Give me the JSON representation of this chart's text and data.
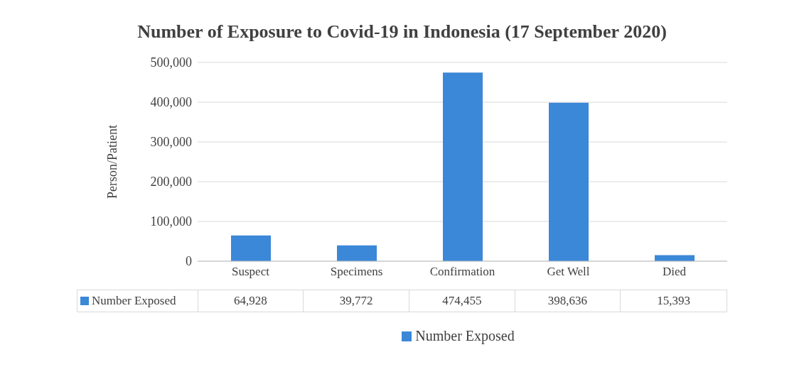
{
  "chart_data": {
    "type": "bar",
    "title": "Number of Exposure to Covid-19 in Indonesia (17 September 2020)",
    "ylabel": "Person/Patient",
    "categories": [
      "Suspect",
      "Specimens",
      "Confirmation",
      "Get Well",
      "Died"
    ],
    "series": [
      {
        "name": "Number Exposed",
        "color": "#3b87d8",
        "values": [
          64928,
          39772,
          474455,
          398636,
          15393
        ],
        "value_labels": [
          "64,928",
          "39,772",
          "474,455",
          "398,636",
          "15,393"
        ]
      }
    ],
    "ylim": [
      0,
      500000
    ],
    "yticks": [
      0,
      {
        "value": 100000,
        "label": "100,000"
      },
      {
        "value": 200000,
        "label": "200,000"
      },
      {
        "value": 300000,
        "label": "300,000"
      },
      {
        "value": 400000,
        "label": "400,000"
      },
      {
        "value": 500000,
        "label": "500,000"
      }
    ],
    "grid": "y",
    "legend": "bottom"
  }
}
